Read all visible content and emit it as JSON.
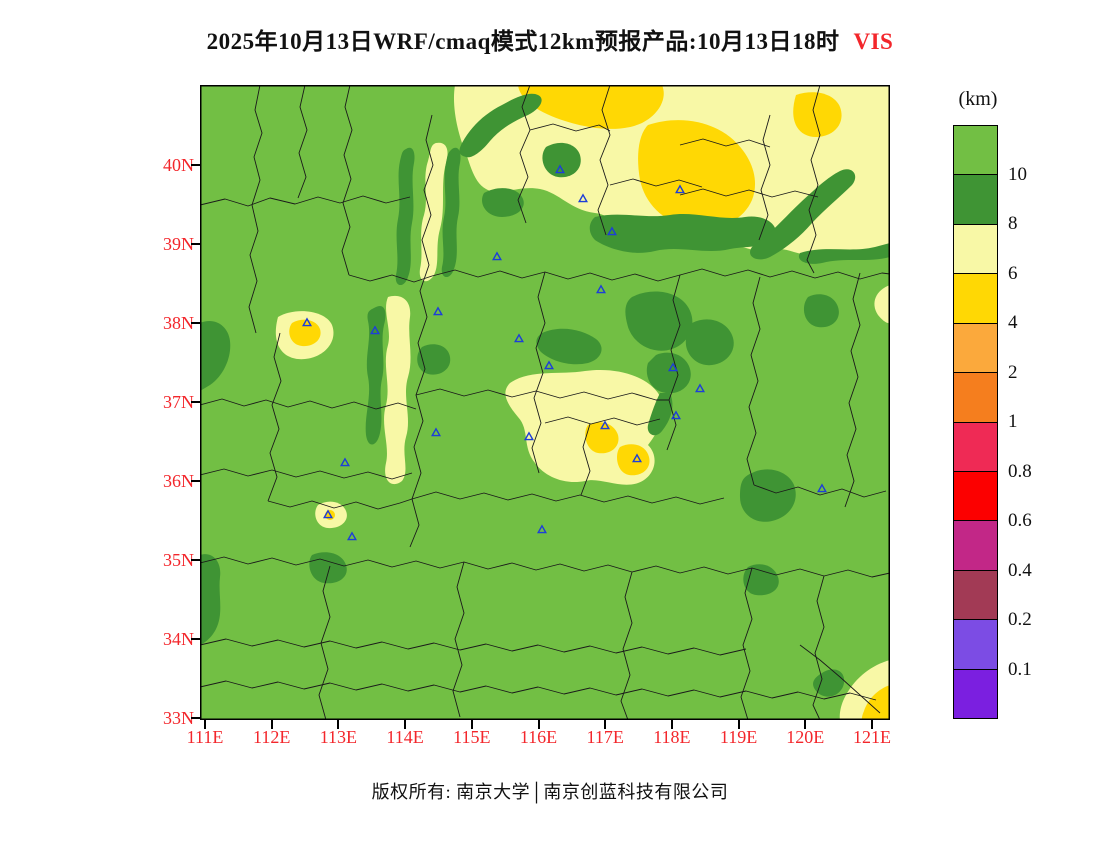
{
  "title": {
    "text": "2025年10月13日WRF/cmaq模式12km预报产品:10月13日18时",
    "variable": "VIS"
  },
  "footer": {
    "copyright": "版权所有: 南京大学│南京创蓝科技有限公司"
  },
  "axes": {
    "lat": [
      "40N",
      "39N",
      "38N",
      "37N",
      "36N",
      "35N",
      "34N",
      "33N"
    ],
    "lon": [
      "111E",
      "112E",
      "113E",
      "114E",
      "115E",
      "116E",
      "117E",
      "118E",
      "119E",
      "120E",
      "121E"
    ],
    "label_color": "#f3262b"
  },
  "colorbar": {
    "unit": "(km)",
    "labels": [
      "10",
      "8",
      "6",
      "4",
      "2",
      "1",
      "0.8",
      "0.6",
      "0.4",
      "0.2",
      "0.1"
    ],
    "colors_top_to_bottom": [
      "#72bf44",
      "#3f9434",
      "#f8f8a6",
      "#ffd804",
      "#fba93c",
      "#f57e1e",
      "#ef2a55",
      "#fc0000",
      "#c22787",
      "#a23a55",
      "#7c4ce4",
      "#7b1fe0"
    ]
  },
  "map": {
    "background_color": "#72bf44",
    "dark_green_color": "#3f9434",
    "pale_yellow_color": "#f8f8a6",
    "yellow_color": "#ffd804",
    "boundary_color": "#1a1a1a",
    "station_marker_color": "#1d3ed8",
    "stations": [
      [
        360,
        85
      ],
      [
        383,
        114
      ],
      [
        480,
        105
      ],
      [
        412,
        147
      ],
      [
        297,
        172
      ],
      [
        401,
        205
      ],
      [
        107,
        238
      ],
      [
        175,
        246
      ],
      [
        238,
        227
      ],
      [
        319,
        254
      ],
      [
        349,
        281
      ],
      [
        473,
        283
      ],
      [
        500,
        304
      ],
      [
        476,
        331
      ],
      [
        405,
        341
      ],
      [
        236,
        348
      ],
      [
        329,
        352
      ],
      [
        437,
        374
      ],
      [
        145,
        378
      ],
      [
        342,
        445
      ],
      [
        152,
        452
      ],
      [
        128,
        430
      ],
      [
        622,
        404
      ]
    ]
  }
}
